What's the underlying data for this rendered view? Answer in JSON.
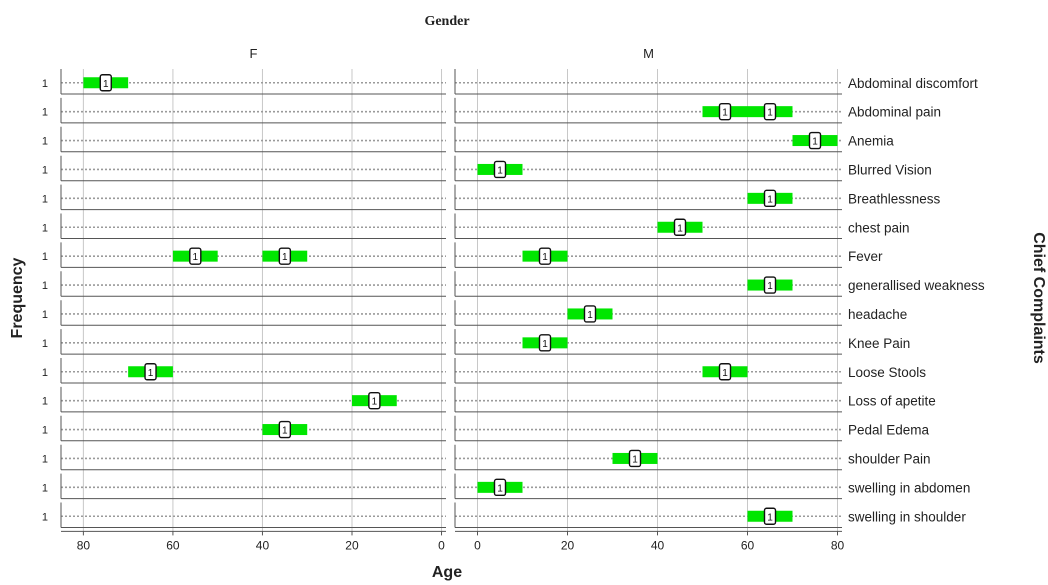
{
  "chart_data": {
    "type": "histogram-panel",
    "title": "Gender",
    "xlabel": "Age",
    "ylabel": "Frequency",
    "row_axis_title": "Chief Complaints",
    "panels": [
      {
        "name": "F",
        "xlim": [
          85,
          -1
        ],
        "reversed": true
      },
      {
        "name": "M",
        "xlim": [
          -5,
          81
        ],
        "reversed": false
      }
    ],
    "x_ticks": {
      "F": [
        "80",
        "60",
        "40",
        "20",
        "0"
      ],
      "M": [
        "0",
        "20",
        "40",
        "60",
        "80"
      ]
    },
    "x_tick_values": {
      "F": [
        80,
        60,
        40,
        20,
        0
      ],
      "M": [
        0,
        20,
        40,
        60,
        80
      ]
    },
    "bin_width": 10,
    "y_tick_label": "1",
    "count_label": "1",
    "rows": [
      {
        "label": "Abdominal discomfort",
        "F": [
          75
        ],
        "M": []
      },
      {
        "label": "Abdominal pain",
        "F": [],
        "M": [
          55,
          65
        ]
      },
      {
        "label": "Anemia",
        "F": [],
        "M": [
          75
        ]
      },
      {
        "label": "Blurred Vision",
        "F": [],
        "M": [
          5
        ]
      },
      {
        "label": "Breathlessness",
        "F": [],
        "M": [
          65
        ]
      },
      {
        "label": "chest pain",
        "F": [],
        "M": [
          45
        ]
      },
      {
        "label": "Fever",
        "F": [
          55,
          35
        ],
        "M": [
          15
        ]
      },
      {
        "label": "generallised weakness",
        "F": [],
        "M": [
          65
        ]
      },
      {
        "label": "headache",
        "F": [],
        "M": [
          25
        ]
      },
      {
        "label": "Knee Pain",
        "F": [],
        "M": [
          15
        ]
      },
      {
        "label": "Loose Stools",
        "F": [
          65
        ],
        "M": [
          55
        ]
      },
      {
        "label": "Loss of apetite",
        "F": [
          15
        ],
        "M": []
      },
      {
        "label": "Pedal Edema",
        "F": [
          35
        ],
        "M": []
      },
      {
        "label": "shoulder Pain",
        "F": [],
        "M": [
          35
        ]
      },
      {
        "label": "swelling in abdomen",
        "F": [],
        "M": [
          5
        ]
      },
      {
        "label": "swelling in shoulder",
        "F": [],
        "M": [
          65
        ]
      }
    ],
    "colors": {
      "bar": "#00e600",
      "grid_vertical": "#c8c8c8",
      "dotted_line": "#9a9a9a",
      "axis": "#555555",
      "text": "#222222"
    }
  }
}
